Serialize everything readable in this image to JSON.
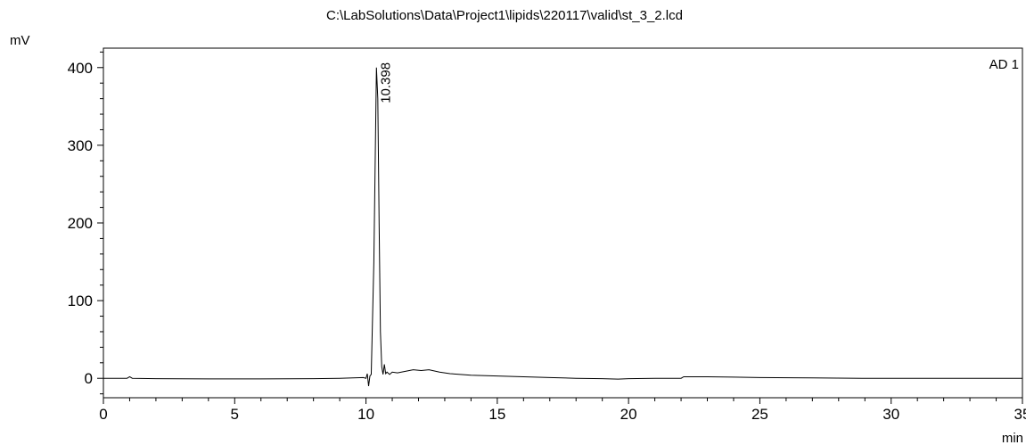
{
  "chart_data": {
    "type": "line",
    "title": "C:\\LabSolutions\\Data\\Project1\\lipids\\220117\\valid\\st_3_2.lcd",
    "xlabel": "min",
    "ylabel": "mV",
    "xlim": [
      0,
      35
    ],
    "ylim": [
      -25,
      425
    ],
    "x_ticks": [
      0,
      5,
      10,
      15,
      20,
      25,
      30,
      35
    ],
    "y_ticks": [
      0,
      100,
      200,
      300,
      400
    ],
    "x_tick_labels": [
      "0",
      "5",
      "10",
      "15",
      "20",
      "25",
      "30",
      "35"
    ],
    "y_tick_labels": [
      "0",
      "100",
      "200",
      "300",
      "400"
    ],
    "grid": false,
    "legend": "top-right",
    "series": [
      {
        "name": "AD 1",
        "color": "#000000",
        "points": [
          [
            0,
            0
          ],
          [
            0.9,
            0
          ],
          [
            1.0,
            2
          ],
          [
            1.1,
            0
          ],
          [
            2,
            -0.5
          ],
          [
            4,
            -0.8
          ],
          [
            6,
            -0.8
          ],
          [
            8,
            -0.5
          ],
          [
            9.0,
            0
          ],
          [
            9.5,
            0.5
          ],
          [
            9.9,
            1
          ],
          [
            10.0,
            0
          ],
          [
            10.05,
            6
          ],
          [
            10.1,
            -10
          ],
          [
            10.15,
            3
          ],
          [
            10.2,
            5
          ],
          [
            10.3,
            150
          ],
          [
            10.398,
            400
          ],
          [
            10.45,
            360
          ],
          [
            10.5,
            200
          ],
          [
            10.55,
            60
          ],
          [
            10.6,
            15
          ],
          [
            10.65,
            5
          ],
          [
            10.7,
            18
          ],
          [
            10.75,
            6
          ],
          [
            10.8,
            8
          ],
          [
            10.9,
            5
          ],
          [
            11.0,
            8
          ],
          [
            11.2,
            7
          ],
          [
            11.5,
            9
          ],
          [
            11.8,
            11
          ],
          [
            12.1,
            10
          ],
          [
            12.4,
            11
          ],
          [
            12.8,
            8
          ],
          [
            13.2,
            6
          ],
          [
            14,
            4
          ],
          [
            15,
            3
          ],
          [
            16,
            2
          ],
          [
            17,
            1
          ],
          [
            18,
            0
          ],
          [
            19,
            -0.5
          ],
          [
            19.6,
            -1
          ],
          [
            20,
            -0.5
          ],
          [
            21,
            0
          ],
          [
            22.0,
            0
          ],
          [
            22.1,
            2
          ],
          [
            23,
            2
          ],
          [
            24,
            1.5
          ],
          [
            25,
            1
          ],
          [
            27,
            0.5
          ],
          [
            28.9,
            0
          ],
          [
            29,
            0
          ],
          [
            31,
            0
          ],
          [
            33,
            0
          ],
          [
            35,
            0
          ]
        ]
      }
    ],
    "annotations": [
      {
        "text": "10.398",
        "x": 10.398,
        "y": 400
      }
    ]
  }
}
